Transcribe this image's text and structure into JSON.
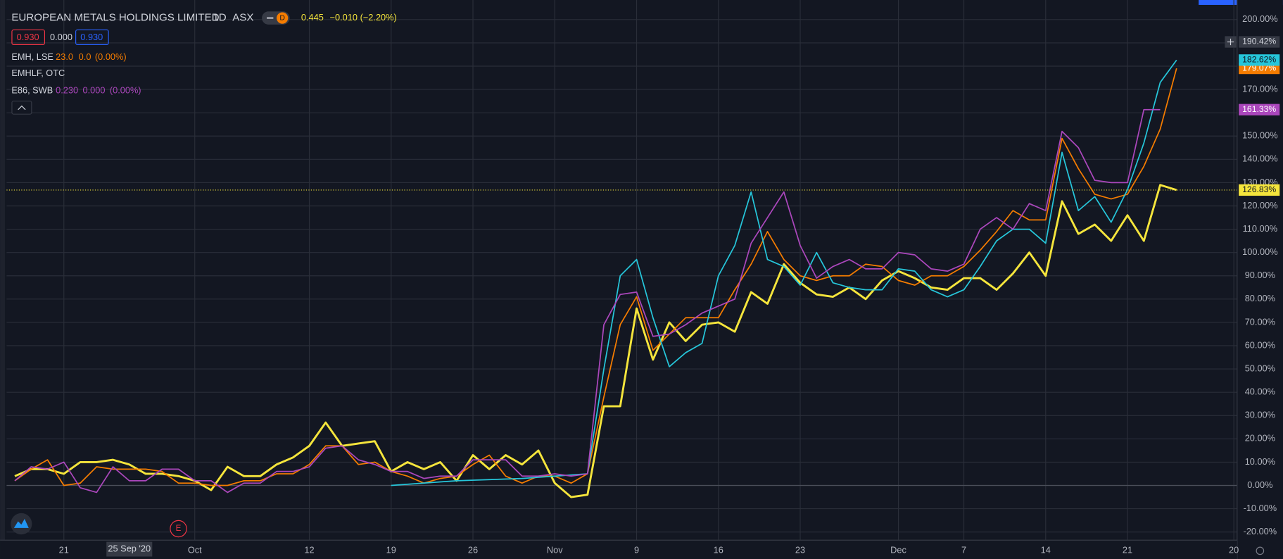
{
  "chart_data": {
    "type": "line",
    "x": [
      0,
      1,
      2,
      3,
      4,
      5,
      6,
      7,
      8,
      9,
      10,
      11,
      12,
      13,
      14,
      15,
      16,
      17,
      18,
      19,
      20,
      21,
      22,
      23,
      24,
      25,
      26,
      27,
      28,
      29,
      30,
      31,
      32,
      33,
      34,
      35,
      36,
      37,
      38,
      39,
      40,
      41,
      42,
      43,
      44,
      45,
      46,
      47,
      48,
      49,
      50,
      51,
      52,
      53,
      54,
      55,
      56,
      57,
      58,
      59,
      60,
      61,
      62,
      63,
      64,
      65,
      66,
      67,
      68,
      69,
      70,
      71
    ],
    "xlim": [
      -0.5,
      74.7
    ],
    "xticks": [
      {
        "value": 3,
        "label": "21"
      },
      {
        "value": 11,
        "label": "Oct"
      },
      {
        "value": 18,
        "label": "12"
      },
      {
        "value": 23,
        "label": "19"
      },
      {
        "value": 28,
        "label": "26"
      },
      {
        "value": 33,
        "label": "Nov"
      },
      {
        "value": 38,
        "label": "9"
      },
      {
        "value": 43,
        "label": "16"
      },
      {
        "value": 48,
        "label": "23"
      },
      {
        "value": 54,
        "label": "Dec"
      },
      {
        "value": 58,
        "label": "7"
      },
      {
        "value": 63,
        "label": "14"
      },
      {
        "value": 68,
        "label": "21"
      },
      {
        "value": 74.5,
        "label": "20"
      }
    ],
    "ylim": [
      -23.5,
      205.6
    ],
    "yticks": [
      {
        "value": -20,
        "label": "-20.00%"
      },
      {
        "value": -10,
        "label": "-10.00%"
      },
      {
        "value": 0,
        "label": "0.00%"
      },
      {
        "value": 10,
        "label": "10.00%"
      },
      {
        "value": 20,
        "label": "20.00%"
      },
      {
        "value": 30,
        "label": "30.00%"
      },
      {
        "value": 40,
        "label": "40.00%"
      },
      {
        "value": 50,
        "label": "50.00%"
      },
      {
        "value": 60,
        "label": "60.00%"
      },
      {
        "value": 70,
        "label": "70.00%"
      },
      {
        "value": 80,
        "label": "80.00%"
      },
      {
        "value": 90,
        "label": "90.00%"
      },
      {
        "value": 100,
        "label": "100.00%"
      },
      {
        "value": 110,
        "label": "110.00%"
      },
      {
        "value": 120,
        "label": "120.00%"
      },
      {
        "value": 130,
        "label": "130.00%"
      },
      {
        "value": 140,
        "label": "140.00%"
      },
      {
        "value": 150,
        "label": "150.00%"
      },
      {
        "value": 160,
        "label": "160.00%"
      },
      {
        "value": 170,
        "label": "170.00%"
      },
      {
        "value": 180,
        "label": "180.00%"
      },
      {
        "value": 190,
        "label": "190.00%"
      },
      {
        "value": 200,
        "label": "200.00%"
      }
    ],
    "grid": true,
    "series": [
      {
        "name": "EUROPEAN METALS HOLDINGS LIMITED",
        "color": "#f5e53c",
        "width": 2.5,
        "last_label": "126.83%",
        "values": [
          4,
          7,
          7,
          5,
          10,
          10,
          11,
          9,
          5,
          5,
          4,
          2,
          -2,
          8,
          4,
          4,
          9,
          12,
          17,
          27,
          17,
          18,
          19,
          6,
          10,
          7,
          10,
          2,
          13,
          7,
          13,
          9,
          15,
          1,
          -5,
          -4,
          34,
          34,
          76,
          54,
          70,
          62,
          69,
          70,
          66,
          83,
          78,
          95,
          87,
          82,
          81,
          85,
          80,
          88,
          92,
          89,
          85,
          84,
          89,
          89,
          84,
          91,
          100,
          90,
          122,
          108,
          112,
          105,
          116,
          105,
          129,
          126.83
        ]
      },
      {
        "name": "EMH, LSE",
        "color": "#f57c00",
        "width": 1.5,
        "last_label": "179.07%",
        "legend_values": [
          "23.0",
          "0.0",
          "(0.00%)"
        ],
        "values": [
          2,
          7,
          11,
          0,
          1,
          8,
          7,
          7,
          7,
          6,
          1,
          1,
          0,
          0,
          2,
          2,
          5,
          5,
          9,
          17,
          17,
          9,
          10,
          6,
          4,
          1,
          3,
          4,
          9,
          13,
          4,
          1,
          4,
          4,
          1,
          5,
          38,
          69,
          81,
          58,
          65,
          72,
          72,
          72,
          84,
          95,
          109,
          97,
          90,
          88,
          90,
          90,
          95,
          94,
          88,
          86,
          90,
          90,
          94,
          101,
          109,
          118,
          114,
          114,
          149,
          136,
          125,
          123,
          125,
          137,
          153,
          179.07
        ]
      },
      {
        "name": "EMHLF, OTC",
        "color": "#26c6da",
        "width": 1.5,
        "last_label": "182.62%",
        "x": [
          23,
          27,
          31,
          35,
          36,
          37,
          38,
          39,
          40,
          41,
          42,
          43,
          44,
          45,
          46,
          47,
          48,
          49,
          50,
          51,
          52,
          53,
          54,
          55,
          56,
          57,
          58,
          59,
          60,
          61,
          62,
          63,
          64,
          65,
          66,
          67,
          68,
          69,
          70,
          71
        ],
        "values": [
          0,
          2,
          3,
          5,
          50,
          90,
          97,
          72,
          51,
          57,
          61,
          90,
          103,
          126,
          97,
          94,
          86,
          100,
          87,
          85,
          84,
          84,
          93,
          92,
          84,
          81,
          84,
          94,
          105,
          110,
          110,
          104,
          143,
          118,
          124,
          113,
          127,
          147,
          173,
          182.62
        ]
      },
      {
        "name": "E86, SWB",
        "color": "#ab47bc",
        "width": 1.5,
        "last_label": "161.33%",
        "legend_values": [
          "0.230",
          "0.000",
          "(0.00%)"
        ],
        "values": [
          2,
          8,
          7,
          10,
          -1,
          -3,
          8,
          2,
          2,
          7,
          7,
          2,
          2,
          -3,
          1,
          1,
          6,
          6,
          8,
          16,
          17,
          11,
          9,
          6,
          6,
          3,
          4,
          4,
          11,
          11,
          11,
          4,
          4,
          5,
          4,
          5,
          69,
          82,
          83,
          64,
          65,
          69,
          74,
          77,
          80,
          104,
          115,
          126,
          103,
          89,
          94,
          97,
          93,
          93,
          100,
          99,
          93,
          92,
          95,
          110,
          115,
          110,
          121,
          118,
          152,
          145,
          131,
          130,
          130,
          161.33,
          161.33,
          null
        ]
      }
    ],
    "crosshair": {
      "x": 7,
      "x_label": "25 Sep '20",
      "y": 190.42,
      "y_label": "190.42%"
    },
    "earnings_marker": {
      "x": 10,
      "label": "E"
    }
  },
  "header": {
    "interval": "1D",
    "exchange": "ASX",
    "badge": "D",
    "last": "0.445",
    "change": "−0.010",
    "change_pct": "(−2.20%)",
    "bid": "0.930",
    "spread": "0.000",
    "ask": "0.930"
  }
}
